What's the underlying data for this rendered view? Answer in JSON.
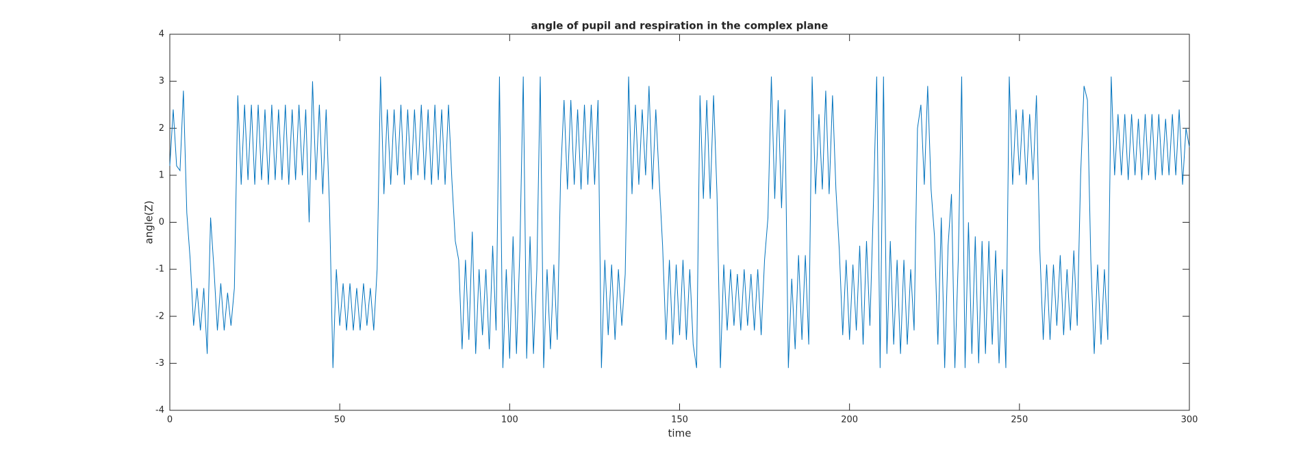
{
  "chart_data": {
    "type": "line",
    "title": "angle of pupil and respiration in the complex plane",
    "x_label": "time",
    "y_label": "angle(Z)",
    "xlim": [
      0,
      300
    ],
    "ylim": [
      -4,
      4
    ],
    "xticks": [
      0,
      50,
      100,
      150,
      200,
      250,
      300
    ],
    "yticks": [
      -4,
      -3,
      -2,
      -1,
      0,
      1,
      2,
      3,
      4
    ],
    "grid": false,
    "x": [
      0,
      1,
      2,
      3,
      4,
      5,
      6,
      7,
      8,
      9,
      10,
      11,
      12,
      13,
      14,
      15,
      16,
      17,
      18,
      19,
      20,
      21,
      22,
      23,
      24,
      25,
      26,
      27,
      28,
      29,
      30,
      31,
      32,
      33,
      34,
      35,
      36,
      37,
      38,
      39,
      40,
      41,
      42,
      43,
      44,
      45,
      46,
      47,
      48,
      49,
      50,
      51,
      52,
      53,
      54,
      55,
      56,
      57,
      58,
      59,
      60,
      61,
      62,
      63,
      64,
      65,
      66,
      67,
      68,
      69,
      70,
      71,
      72,
      73,
      74,
      75,
      76,
      77,
      78,
      79,
      80,
      81,
      82,
      83,
      84,
      85,
      86,
      87,
      88,
      89,
      90,
      91,
      92,
      93,
      94,
      95,
      96,
      97,
      98,
      99,
      100,
      101,
      102,
      103,
      104,
      105,
      106,
      107,
      108,
      109,
      110,
      111,
      112,
      113,
      114,
      115,
      116,
      117,
      118,
      119,
      120,
      121,
      122,
      123,
      124,
      125,
      126,
      127,
      128,
      129,
      130,
      131,
      132,
      133,
      134,
      135,
      136,
      137,
      138,
      139,
      140,
      141,
      142,
      143,
      144,
      145,
      146,
      147,
      148,
      149,
      150,
      151,
      152,
      153,
      154,
      155,
      156,
      157,
      158,
      159,
      160,
      161,
      162,
      163,
      164,
      165,
      166,
      167,
      168,
      169,
      170,
      171,
      172,
      173,
      174,
      175,
      176,
      177,
      178,
      179,
      180,
      181,
      182,
      183,
      184,
      185,
      186,
      187,
      188,
      189,
      190,
      191,
      192,
      193,
      194,
      195,
      196,
      197,
      198,
      199,
      200,
      201,
      202,
      203,
      204,
      205,
      206,
      207,
      208,
      209,
      210,
      211,
      212,
      213,
      214,
      215,
      216,
      217,
      218,
      219,
      220,
      221,
      222,
      223,
      224,
      225,
      226,
      227,
      228,
      229,
      230,
      231,
      232,
      233,
      234,
      235,
      236,
      237,
      238,
      239,
      240,
      241,
      242,
      243,
      244,
      245,
      246,
      247,
      248,
      249,
      250,
      251,
      252,
      253,
      254,
      255,
      256,
      257,
      258,
      259,
      260,
      261,
      262,
      263,
      264,
      265,
      266,
      267,
      268,
      269,
      270,
      271,
      272,
      273,
      274,
      275,
      276,
      277,
      278,
      279,
      280,
      281,
      282,
      283,
      284,
      285,
      286,
      287,
      288,
      289,
      290,
      291,
      292,
      293,
      294,
      295,
      296,
      297,
      298,
      299,
      300
    ],
    "series": [
      {
        "color": "#0072bd",
        "values": [
          1.2,
          2.4,
          1.2,
          1.1,
          2.8,
          0.2,
          -0.8,
          -2.2,
          -1.4,
          -2.3,
          -1.4,
          -2.8,
          0.1,
          -1.0,
          -2.3,
          -1.3,
          -2.3,
          -1.5,
          -2.2,
          -1.4,
          2.7,
          0.8,
          2.5,
          0.9,
          2.5,
          0.8,
          2.5,
          0.9,
          2.4,
          0.8,
          2.5,
          0.9,
          2.4,
          0.9,
          2.5,
          0.8,
          2.4,
          0.9,
          2.5,
          1.0,
          2.4,
          0.0,
          3.0,
          0.9,
          2.5,
          0.6,
          2.4,
          0.3,
          -3.1,
          -1.0,
          -2.2,
          -1.3,
          -2.3,
          -1.3,
          -2.3,
          -1.4,
          -2.3,
          -1.3,
          -2.2,
          -1.4,
          -2.3,
          -1.0,
          3.1,
          0.6,
          2.4,
          0.8,
          2.4,
          1.0,
          2.5,
          0.8,
          2.4,
          0.9,
          2.4,
          1.0,
          2.5,
          0.9,
          2.4,
          0.8,
          2.5,
          0.9,
          2.4,
          0.8,
          2.5,
          0.9,
          -0.4,
          -0.8,
          -2.7,
          -0.8,
          -2.5,
          -0.2,
          -2.8,
          -1.0,
          -2.4,
          -1.0,
          -2.7,
          -0.5,
          -2.3,
          3.1,
          -3.1,
          -1.0,
          -2.9,
          -0.3,
          -2.8,
          -0.6,
          3.1,
          -2.9,
          -0.3,
          -2.8,
          -1.0,
          3.1,
          -3.1,
          -1.0,
          -2.7,
          -0.9,
          -2.5,
          1.0,
          2.6,
          0.7,
          2.6,
          0.8,
          2.4,
          0.7,
          2.5,
          0.8,
          2.5,
          0.8,
          2.6,
          -3.1,
          -0.8,
          -2.4,
          -0.9,
          -2.5,
          -1.0,
          -2.2,
          -1.1,
          3.1,
          0.6,
          2.5,
          0.8,
          2.4,
          1.0,
          2.9,
          0.7,
          2.4,
          0.9,
          -0.5,
          -2.5,
          -0.8,
          -2.6,
          -0.9,
          -2.4,
          -0.8,
          -2.5,
          -1.0,
          -2.6,
          -3.1,
          2.7,
          0.5,
          2.6,
          0.5,
          2.7,
          0.6,
          -3.1,
          -0.9,
          -2.3,
          -1.0,
          -2.2,
          -1.1,
          -2.3,
          -1.0,
          -2.2,
          -1.1,
          -2.3,
          -1.0,
          -2.4,
          -0.8,
          0.1,
          3.1,
          0.5,
          2.6,
          0.3,
          2.4,
          -3.1,
          -1.2,
          -2.7,
          -0.7,
          -2.5,
          -0.7,
          -2.6,
          3.1,
          0.6,
          2.3,
          0.7,
          2.8,
          0.6,
          2.7,
          0.7,
          -0.6,
          -2.4,
          -0.8,
          -2.5,
          -0.9,
          -2.3,
          -0.5,
          -2.6,
          -0.4,
          -2.2,
          0.3,
          3.1,
          -3.1,
          3.1,
          -2.8,
          -0.4,
          -2.6,
          -0.8,
          -2.8,
          -0.8,
          -2.6,
          -1.0,
          -2.3,
          2.0,
          2.5,
          0.8,
          2.9,
          0.7,
          -0.3,
          -2.6,
          0.1,
          -3.1,
          -0.5,
          0.6,
          -3.1,
          -0.8,
          3.1,
          -3.1,
          0.0,
          -2.8,
          -0.3,
          -3.0,
          -0.4,
          -2.8,
          -0.4,
          -2.6,
          -0.6,
          -3.0,
          -1.0,
          -3.1,
          3.1,
          0.8,
          2.4,
          1.0,
          2.4,
          0.8,
          2.3,
          0.9,
          2.7,
          -0.6,
          -2.5,
          -0.9,
          -2.5,
          -0.9,
          -2.2,
          -0.7,
          -2.4,
          -1.0,
          -2.3,
          -0.6,
          -2.2,
          1.0,
          2.9,
          2.6,
          -0.8,
          -2.8,
          -0.9,
          -2.6,
          -1.0,
          -2.5,
          3.1,
          1.0,
          2.3,
          1.0,
          2.3,
          0.9,
          2.3,
          1.0,
          2.2,
          0.9,
          2.3,
          1.0,
          2.3,
          0.9,
          2.3,
          1.0,
          2.2,
          1.0,
          2.3,
          1.0,
          2.4,
          0.8,
          2.0,
          1.6
        ]
      }
    ]
  }
}
